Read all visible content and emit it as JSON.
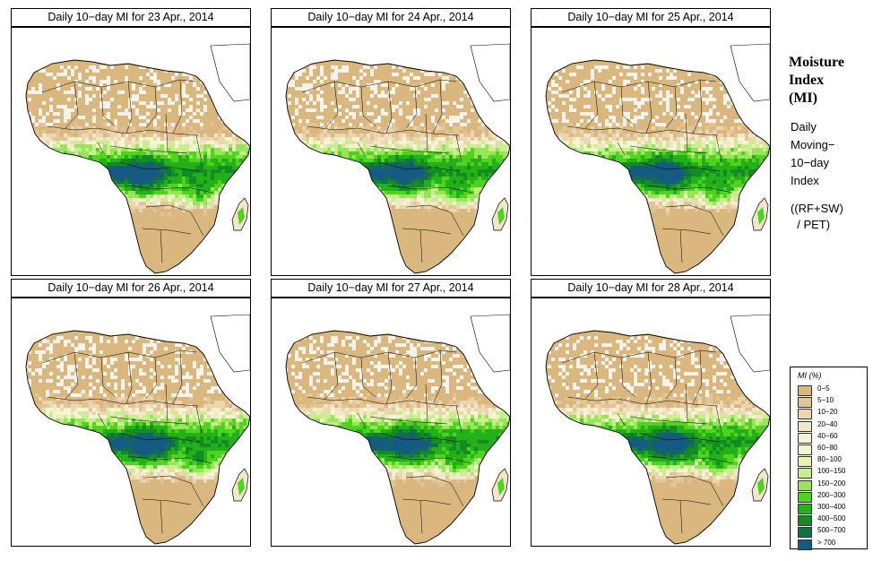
{
  "panels": [
    {
      "title": "Daily 10−day MI for  23 Apr., 2014",
      "shift": 0
    },
    {
      "title": "Daily 10−day MI for  24 Apr., 2014",
      "shift": 1
    },
    {
      "title": "Daily 10−day MI for  25 Apr., 2014",
      "shift": 2
    },
    {
      "title": "Daily 10−day MI for  26 Apr., 2014",
      "shift": 3
    },
    {
      "title": "Daily 10−day MI for  27 Apr., 2014",
      "shift": 4
    },
    {
      "title": "Daily 10−day MI for  28 Apr., 2014",
      "shift": 5
    }
  ],
  "side": {
    "title_lines": [
      "Moisture",
      "Index",
      "(MI)"
    ],
    "desc_lines": [
      "Daily",
      "Moving−",
      "10−day",
      "Index"
    ],
    "formula_lines": [
      "((RF+SW)",
      "  / PET)"
    ]
  },
  "legend": {
    "title": "MI (%)",
    "items": [
      {
        "label": "0−5",
        "color": "#d9b77f"
      },
      {
        "label": "5−10",
        "color": "#e3c496"
      },
      {
        "label": "10−20",
        "color": "#ecd6b0"
      },
      {
        "label": "20−40",
        "color": "#f4e6cb"
      },
      {
        "label": "40−60",
        "color": "#f6f2d9"
      },
      {
        "label": "60−80",
        "color": "#f3f7cf"
      },
      {
        "label": "80−100",
        "color": "#e4f4b4"
      },
      {
        "label": "100−150",
        "color": "#c8ef8e"
      },
      {
        "label": "150−200",
        "color": "#98e45a"
      },
      {
        "label": "200−300",
        "color": "#4ed41e"
      },
      {
        "label": "300−400",
        "color": "#24b018"
      },
      {
        "label": "400−500",
        "color": "#148c24"
      },
      {
        "label": "500−700",
        "color": "#10704a"
      },
      {
        "label": "> 700",
        "color": "#155a82"
      }
    ]
  }
}
